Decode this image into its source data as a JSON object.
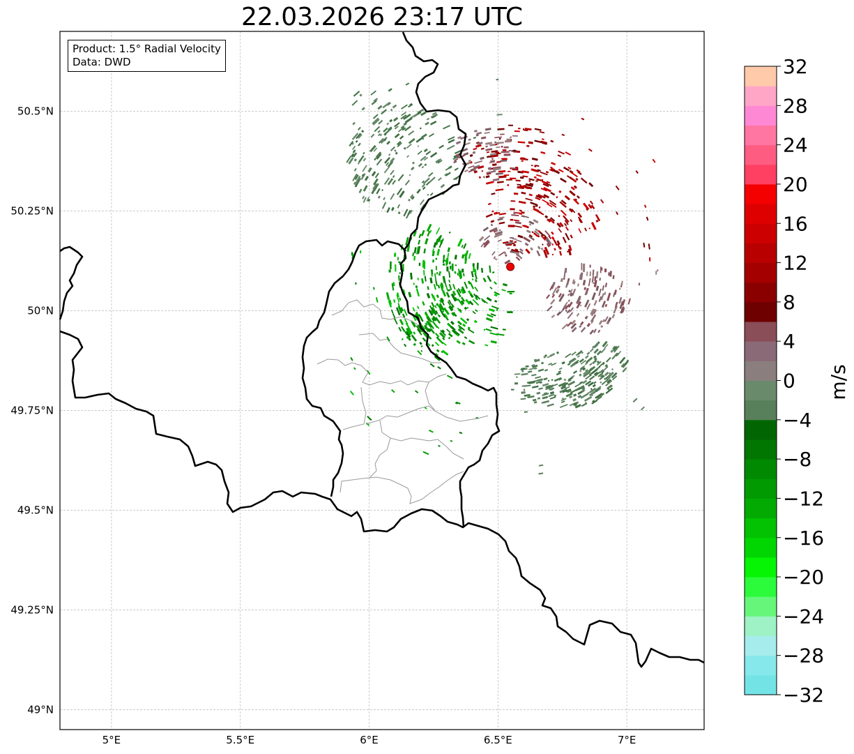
{
  "title": "22.03.2026 23:17 UTC",
  "info_box": {
    "product": "Product: 1.5° Radial Velocity",
    "data": "Data: DWD"
  },
  "map": {
    "lon_range": [
      4.8,
      7.3
    ],
    "lat_range": [
      48.95,
      50.7
    ],
    "lon_ticks": [
      {
        "value": 5.0,
        "label": "5°E"
      },
      {
        "value": 5.5,
        "label": "5.5°E"
      },
      {
        "value": 6.0,
        "label": "6°E"
      },
      {
        "value": 6.5,
        "label": "6.5°E"
      },
      {
        "value": 7.0,
        "label": "7°E"
      }
    ],
    "lat_ticks": [
      {
        "value": 50.5,
        "label": "50.5°N"
      },
      {
        "value": 50.25,
        "label": "50.25°N"
      },
      {
        "value": 50.0,
        "label": "50°N"
      },
      {
        "value": 49.75,
        "label": "49.75°N"
      },
      {
        "value": 49.5,
        "label": "49.5°N"
      },
      {
        "value": 49.25,
        "label": "49.25°N"
      },
      {
        "value": 49.0,
        "label": "49°N"
      }
    ],
    "grid": true,
    "radar_site": {
      "lon": 6.548,
      "lat": 50.11,
      "color": "#ee0000"
    }
  },
  "colorbar": {
    "unit_label": "m/s",
    "min": -32,
    "max": 32,
    "tick_labels": [
      "32",
      "28",
      "24",
      "20",
      "16",
      "12",
      "8",
      "4",
      "0",
      "−4",
      "−8",
      "−12",
      "−16",
      "−20",
      "−24",
      "−28",
      "−32"
    ],
    "tick_values": [
      32,
      28,
      24,
      20,
      16,
      12,
      8,
      4,
      0,
      -4,
      -8,
      -12,
      -16,
      -20,
      -24,
      -28,
      -32
    ],
    "colors_bottom_to_top": [
      "#74e3e6",
      "#86e8ea",
      "#a6ecec",
      "#9ef2c6",
      "#66f77a",
      "#2cfb3c",
      "#05f505",
      "#02d602",
      "#02c202",
      "#02aa02",
      "#019a01",
      "#018a01",
      "#017601",
      "#016601",
      "#58805a",
      "#6a8a6c",
      "#8a7e7e",
      "#8a6a76",
      "#8a4e58",
      "#6e0000",
      "#8a0000",
      "#a40000",
      "#b80000",
      "#cc0000",
      "#de0000",
      "#f40000",
      "#ff4062",
      "#ff5c82",
      "#ff76a2",
      "#ff88d4",
      "#ffa6c6",
      "#ffcaaa"
    ]
  }
}
